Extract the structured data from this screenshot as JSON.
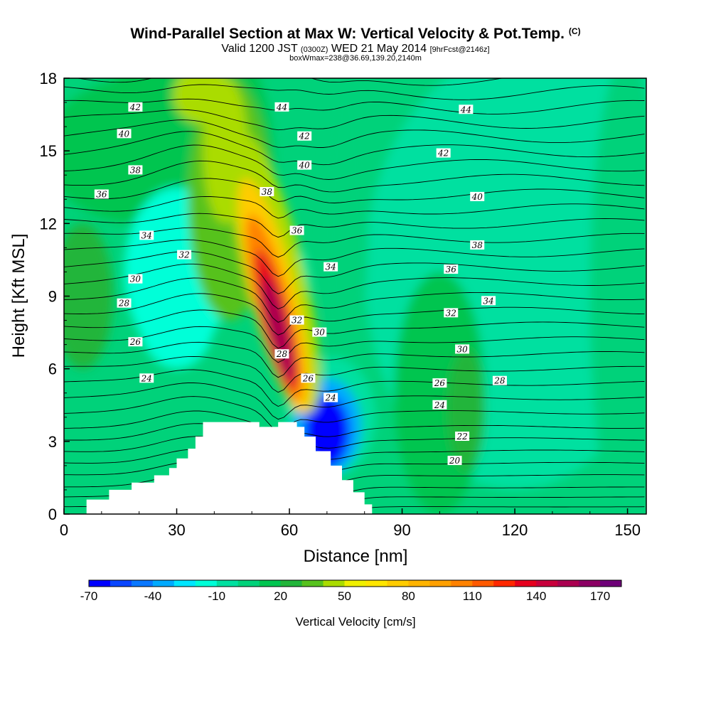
{
  "chart_data": {
    "type": "contour",
    "title": "Wind-Parallel Section at Max W: Vertical Velocity & Pot.Temp.",
    "title_mark": "(C)",
    "subtitle_main": "Valid 1200 JST",
    "subtitle_z": "(0300Z)",
    "subtitle_date": "WED 21 May 2014",
    "subtitle_fcst": "[9hrFcst@2146z]",
    "subtitle2": "boxWmax=238@36.69,139.20,2140m",
    "xlabel": "Distance [nm]",
    "ylabel": "Height [Kft MSL]",
    "xlim": [
      0,
      155
    ],
    "ylim": [
      0,
      18
    ],
    "x_ticks": [
      0,
      30,
      60,
      90,
      120,
      150
    ],
    "y_ticks": [
      0,
      3,
      6,
      9,
      12,
      15,
      18
    ],
    "colorbar": {
      "label": "Vertical Velocity [cm/s]",
      "tick_labels": [
        "-70",
        "-40",
        "-10",
        "20",
        "50",
        "80",
        "110",
        "140",
        "170"
      ],
      "levels": [
        -70,
        -60,
        -50,
        -40,
        -30,
        -20,
        -10,
        0,
        10,
        20,
        30,
        40,
        50,
        60,
        70,
        80,
        90,
        100,
        110,
        120,
        130,
        140,
        150,
        160,
        170
      ],
      "colors": [
        "#0000ff",
        "#0a46ff",
        "#0a78ff",
        "#00aaff",
        "#00e6ff",
        "#00ffd8",
        "#00e0a0",
        "#00d27a",
        "#00c550",
        "#22b53a",
        "#57c21e",
        "#aadc00",
        "#f0f000",
        "#ffe600",
        "#ffcc00",
        "#ffb400",
        "#ffa000",
        "#ff8200",
        "#ff5a00",
        "#ff2800",
        "#e6001e",
        "#c8003c",
        "#aa0050",
        "#8c0064",
        "#6e0078"
      ]
    },
    "theta_contours": {
      "units": "C",
      "labeled_levels": [
        20,
        22,
        24,
        26,
        28,
        30,
        32,
        34,
        36,
        38,
        40,
        42,
        44
      ]
    },
    "terrain": {
      "x": [
        0,
        6,
        6,
        12,
        12,
        18,
        18,
        24,
        24,
        28,
        28,
        30,
        30,
        33,
        33,
        35,
        35,
        37,
        37,
        41,
        41,
        52,
        52,
        57,
        57,
        62,
        62,
        64,
        64,
        67,
        67,
        71,
        71,
        74,
        74,
        77,
        77,
        80,
        80,
        82,
        82,
        155
      ],
      "y": [
        0,
        0,
        0.6,
        0.6,
        1.0,
        1.0,
        1.3,
        1.3,
        1.6,
        1.6,
        1.9,
        1.9,
        2.3,
        2.3,
        2.7,
        2.7,
        3.2,
        3.2,
        3.8,
        3.8,
        3.8,
        3.8,
        3.6,
        3.6,
        3.8,
        3.8,
        3.6,
        3.6,
        3.2,
        3.2,
        2.6,
        2.6,
        2.0,
        2.0,
        1.4,
        1.4,
        0.9,
        0.9,
        0.4,
        0.4,
        0,
        0
      ]
    },
    "w_features": [
      {
        "x": 57,
        "y": 8.0,
        "w": 140,
        "note": "updraft core"
      },
      {
        "x": 34,
        "y": 17.5,
        "w": 55
      },
      {
        "x": 71,
        "y": 3.3,
        "w": -70,
        "note": "downdraft"
      },
      {
        "x": 30,
        "y": 9.3,
        "w": -20
      },
      {
        "x": 107,
        "y": 4.5,
        "w": 28
      }
    ],
    "contour_labels": [
      {
        "text": "42",
        "x": 19,
        "y": 16.8
      },
      {
        "text": "40",
        "x": 16,
        "y": 15.7
      },
      {
        "text": "38",
        "x": 19,
        "y": 14.2
      },
      {
        "text": "36",
        "x": 10,
        "y": 13.2
      },
      {
        "text": "34",
        "x": 22,
        "y": 11.5
      },
      {
        "text": "32",
        "x": 32,
        "y": 10.7
      },
      {
        "text": "30",
        "x": 19,
        "y": 9.7
      },
      {
        "text": "28",
        "x": 16,
        "y": 8.7
      },
      {
        "text": "26",
        "x": 19,
        "y": 7.1
      },
      {
        "text": "24",
        "x": 22,
        "y": 5.6
      },
      {
        "text": "44",
        "x": 58,
        "y": 16.8
      },
      {
        "text": "42",
        "x": 64,
        "y": 15.6
      },
      {
        "text": "40",
        "x": 64,
        "y": 14.4
      },
      {
        "text": "38",
        "x": 54,
        "y": 13.3
      },
      {
        "text": "36",
        "x": 62,
        "y": 11.7
      },
      {
        "text": "34",
        "x": 71,
        "y": 10.2
      },
      {
        "text": "32",
        "x": 62,
        "y": 8.0
      },
      {
        "text": "30",
        "x": 68,
        "y": 7.5
      },
      {
        "text": "28",
        "x": 58,
        "y": 6.6
      },
      {
        "text": "26",
        "x": 65,
        "y": 5.6
      },
      {
        "text": "24",
        "x": 71,
        "y": 4.8
      },
      {
        "text": "44",
        "x": 107,
        "y": 16.7
      },
      {
        "text": "42",
        "x": 101,
        "y": 14.9
      },
      {
        "text": "40",
        "x": 110,
        "y": 13.1
      },
      {
        "text": "38",
        "x": 110,
        "y": 11.1
      },
      {
        "text": "36",
        "x": 103,
        "y": 10.1
      },
      {
        "text": "34",
        "x": 113,
        "y": 8.8
      },
      {
        "text": "32",
        "x": 103,
        "y": 8.3
      },
      {
        "text": "30",
        "x": 106,
        "y": 6.8
      },
      {
        "text": "28",
        "x": 116,
        "y": 5.5
      },
      {
        "text": "26",
        "x": 100,
        "y": 5.4
      },
      {
        "text": "24",
        "x": 100,
        "y": 4.5
      },
      {
        "text": "22",
        "x": 106,
        "y": 3.2
      },
      {
        "text": "20",
        "x": 104,
        "y": 2.2
      }
    ]
  }
}
